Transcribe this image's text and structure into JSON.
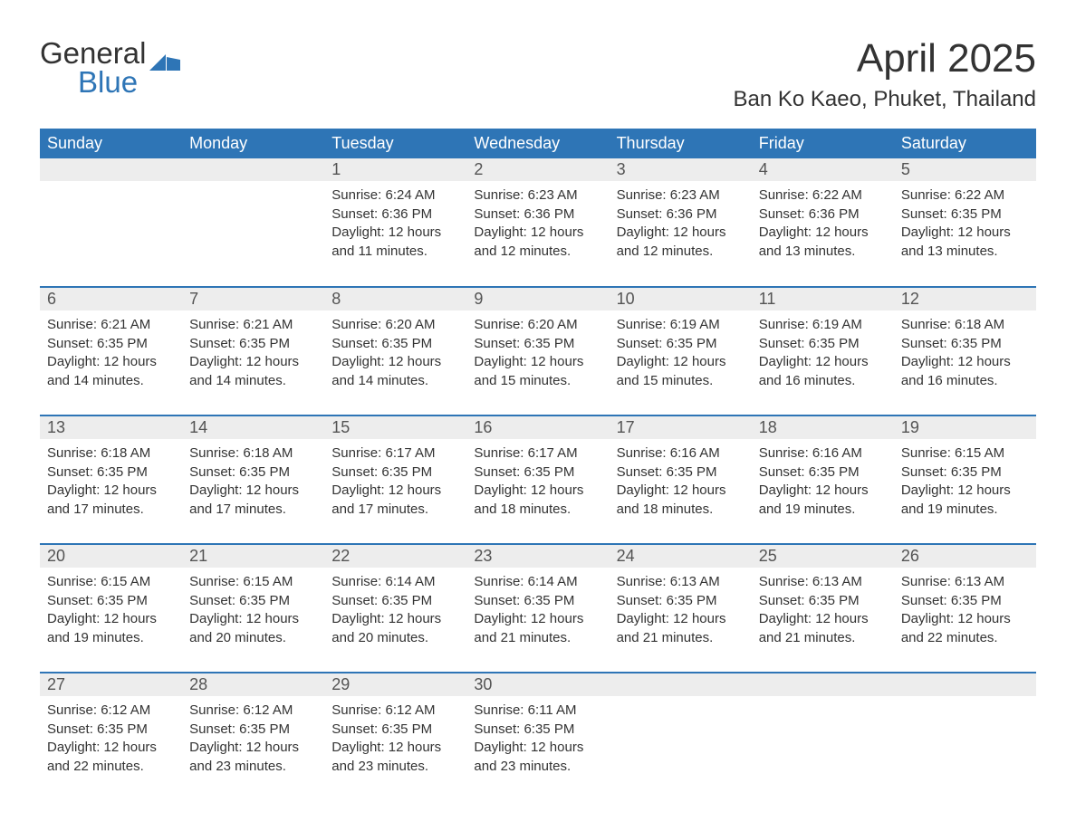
{
  "logo": {
    "top": "General",
    "bottom": "Blue",
    "markColor": "#2e75b6"
  },
  "title": "April 2025",
  "location": "Ban Ko Kaeo, Phuket, Thailand",
  "colors": {
    "headerBg": "#2e75b6",
    "headerText": "#ffffff",
    "dayNumBg": "#ededed",
    "dayNumText": "#545454",
    "bodyText": "#333333",
    "rowBorder": "#2e75b6",
    "pageBg": "#ffffff"
  },
  "typography": {
    "title_fontsize": 44,
    "location_fontsize": 24,
    "header_fontsize": 18,
    "daynum_fontsize": 18,
    "body_fontsize": 15
  },
  "dayHeaders": [
    "Sunday",
    "Monday",
    "Tuesday",
    "Wednesday",
    "Thursday",
    "Friday",
    "Saturday"
  ],
  "weeks": [
    [
      null,
      null,
      {
        "n": "1",
        "sr": "Sunrise: 6:24 AM",
        "ss": "Sunset: 6:36 PM",
        "dl1": "Daylight: 12 hours",
        "dl2": "and 11 minutes."
      },
      {
        "n": "2",
        "sr": "Sunrise: 6:23 AM",
        "ss": "Sunset: 6:36 PM",
        "dl1": "Daylight: 12 hours",
        "dl2": "and 12 minutes."
      },
      {
        "n": "3",
        "sr": "Sunrise: 6:23 AM",
        "ss": "Sunset: 6:36 PM",
        "dl1": "Daylight: 12 hours",
        "dl2": "and 12 minutes."
      },
      {
        "n": "4",
        "sr": "Sunrise: 6:22 AM",
        "ss": "Sunset: 6:36 PM",
        "dl1": "Daylight: 12 hours",
        "dl2": "and 13 minutes."
      },
      {
        "n": "5",
        "sr": "Sunrise: 6:22 AM",
        "ss": "Sunset: 6:35 PM",
        "dl1": "Daylight: 12 hours",
        "dl2": "and 13 minutes."
      }
    ],
    [
      {
        "n": "6",
        "sr": "Sunrise: 6:21 AM",
        "ss": "Sunset: 6:35 PM",
        "dl1": "Daylight: 12 hours",
        "dl2": "and 14 minutes."
      },
      {
        "n": "7",
        "sr": "Sunrise: 6:21 AM",
        "ss": "Sunset: 6:35 PM",
        "dl1": "Daylight: 12 hours",
        "dl2": "and 14 minutes."
      },
      {
        "n": "8",
        "sr": "Sunrise: 6:20 AM",
        "ss": "Sunset: 6:35 PM",
        "dl1": "Daylight: 12 hours",
        "dl2": "and 14 minutes."
      },
      {
        "n": "9",
        "sr": "Sunrise: 6:20 AM",
        "ss": "Sunset: 6:35 PM",
        "dl1": "Daylight: 12 hours",
        "dl2": "and 15 minutes."
      },
      {
        "n": "10",
        "sr": "Sunrise: 6:19 AM",
        "ss": "Sunset: 6:35 PM",
        "dl1": "Daylight: 12 hours",
        "dl2": "and 15 minutes."
      },
      {
        "n": "11",
        "sr": "Sunrise: 6:19 AM",
        "ss": "Sunset: 6:35 PM",
        "dl1": "Daylight: 12 hours",
        "dl2": "and 16 minutes."
      },
      {
        "n": "12",
        "sr": "Sunrise: 6:18 AM",
        "ss": "Sunset: 6:35 PM",
        "dl1": "Daylight: 12 hours",
        "dl2": "and 16 minutes."
      }
    ],
    [
      {
        "n": "13",
        "sr": "Sunrise: 6:18 AM",
        "ss": "Sunset: 6:35 PM",
        "dl1": "Daylight: 12 hours",
        "dl2": "and 17 minutes."
      },
      {
        "n": "14",
        "sr": "Sunrise: 6:18 AM",
        "ss": "Sunset: 6:35 PM",
        "dl1": "Daylight: 12 hours",
        "dl2": "and 17 minutes."
      },
      {
        "n": "15",
        "sr": "Sunrise: 6:17 AM",
        "ss": "Sunset: 6:35 PM",
        "dl1": "Daylight: 12 hours",
        "dl2": "and 17 minutes."
      },
      {
        "n": "16",
        "sr": "Sunrise: 6:17 AM",
        "ss": "Sunset: 6:35 PM",
        "dl1": "Daylight: 12 hours",
        "dl2": "and 18 minutes."
      },
      {
        "n": "17",
        "sr": "Sunrise: 6:16 AM",
        "ss": "Sunset: 6:35 PM",
        "dl1": "Daylight: 12 hours",
        "dl2": "and 18 minutes."
      },
      {
        "n": "18",
        "sr": "Sunrise: 6:16 AM",
        "ss": "Sunset: 6:35 PM",
        "dl1": "Daylight: 12 hours",
        "dl2": "and 19 minutes."
      },
      {
        "n": "19",
        "sr": "Sunrise: 6:15 AM",
        "ss": "Sunset: 6:35 PM",
        "dl1": "Daylight: 12 hours",
        "dl2": "and 19 minutes."
      }
    ],
    [
      {
        "n": "20",
        "sr": "Sunrise: 6:15 AM",
        "ss": "Sunset: 6:35 PM",
        "dl1": "Daylight: 12 hours",
        "dl2": "and 19 minutes."
      },
      {
        "n": "21",
        "sr": "Sunrise: 6:15 AM",
        "ss": "Sunset: 6:35 PM",
        "dl1": "Daylight: 12 hours",
        "dl2": "and 20 minutes."
      },
      {
        "n": "22",
        "sr": "Sunrise: 6:14 AM",
        "ss": "Sunset: 6:35 PM",
        "dl1": "Daylight: 12 hours",
        "dl2": "and 20 minutes."
      },
      {
        "n": "23",
        "sr": "Sunrise: 6:14 AM",
        "ss": "Sunset: 6:35 PM",
        "dl1": "Daylight: 12 hours",
        "dl2": "and 21 minutes."
      },
      {
        "n": "24",
        "sr": "Sunrise: 6:13 AM",
        "ss": "Sunset: 6:35 PM",
        "dl1": "Daylight: 12 hours",
        "dl2": "and 21 minutes."
      },
      {
        "n": "25",
        "sr": "Sunrise: 6:13 AM",
        "ss": "Sunset: 6:35 PM",
        "dl1": "Daylight: 12 hours",
        "dl2": "and 21 minutes."
      },
      {
        "n": "26",
        "sr": "Sunrise: 6:13 AM",
        "ss": "Sunset: 6:35 PM",
        "dl1": "Daylight: 12 hours",
        "dl2": "and 22 minutes."
      }
    ],
    [
      {
        "n": "27",
        "sr": "Sunrise: 6:12 AM",
        "ss": "Sunset: 6:35 PM",
        "dl1": "Daylight: 12 hours",
        "dl2": "and 22 minutes."
      },
      {
        "n": "28",
        "sr": "Sunrise: 6:12 AM",
        "ss": "Sunset: 6:35 PM",
        "dl1": "Daylight: 12 hours",
        "dl2": "and 23 minutes."
      },
      {
        "n": "29",
        "sr": "Sunrise: 6:12 AM",
        "ss": "Sunset: 6:35 PM",
        "dl1": "Daylight: 12 hours",
        "dl2": "and 23 minutes."
      },
      {
        "n": "30",
        "sr": "Sunrise: 6:11 AM",
        "ss": "Sunset: 6:35 PM",
        "dl1": "Daylight: 12 hours",
        "dl2": "and 23 minutes."
      },
      null,
      null,
      null
    ]
  ]
}
